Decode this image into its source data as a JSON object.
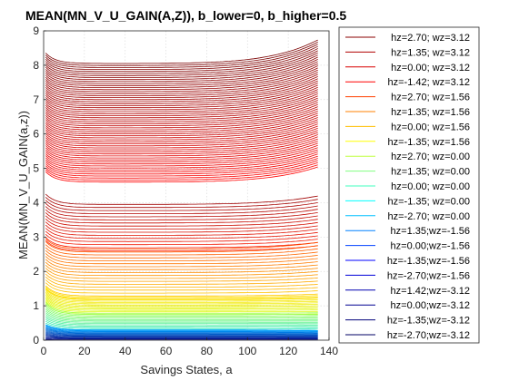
{
  "chart_data": {
    "type": "line",
    "title": "MEAN(MN_V_U_GAIN(A,Z)), b_lower=0, b_higher=0.5",
    "xlabel": "Savings States, a",
    "ylabel": "MEAN(MN_V_U_GAIN(a,z))",
    "xlim": [
      0,
      140
    ],
    "ylim": [
      0,
      9
    ],
    "xticks": [
      0,
      20,
      40,
      60,
      80,
      100,
      120,
      140
    ],
    "yticks": [
      0,
      1,
      2,
      3,
      4,
      5,
      6,
      7,
      8,
      9
    ],
    "grid": true,
    "x_max_data": 135,
    "legend_position": "outside-right",
    "legend": [
      {
        "label": "hz=2.70; wz=3.12",
        "color": "#8b0000"
      },
      {
        "label": "hz=1.35; wz=3.12",
        "color": "#b00000"
      },
      {
        "label": "hz=0.00; wz=3.12",
        "color": "#d80000"
      },
      {
        "label": "hz=-1.42; wz=3.12",
        "color": "#ff0000"
      },
      {
        "label": "hz=2.70; wz=1.56",
        "color": "#ff4000"
      },
      {
        "label": "hz=1.35; wz=1.56",
        "color": "#ff8000"
      },
      {
        "label": "hz=0.00; wz=1.56",
        "color": "#ffbf00"
      },
      {
        "label": "hz=-1.35; wz=1.56",
        "color": "#ffff00"
      },
      {
        "label": "hz=2.70; wz=0.00",
        "color": "#c0ff40"
      },
      {
        "label": "hz=1.35; wz=0.00",
        "color": "#80ff80"
      },
      {
        "label": "hz=0.00; wz=0.00",
        "color": "#40ffbf"
      },
      {
        "label": "hz=-1.35; wz=0.00",
        "color": "#00ffff"
      },
      {
        "label": "hz=-2.70; wz=0.00",
        "color": "#00bfff"
      },
      {
        "label": "hz=1.35;wz=-1.56",
        "color": "#0080ff"
      },
      {
        "label": "hz=0.00;wz=-1.56",
        "color": "#0040ff"
      },
      {
        "label": "hz=-1.35;wz=-1.56",
        "color": "#0000ff"
      },
      {
        "label": "hz=-2.70;wz=-1.56",
        "color": "#0000d8"
      },
      {
        "label": "hz=1.42;wz=-3.12",
        "color": "#0000b0"
      },
      {
        "label": "hz=0.00;wz=-3.12",
        "color": "#000090"
      },
      {
        "label": "hz=-1.35;wz=-3.12",
        "color": "#00007a"
      },
      {
        "label": "hz=-2.70;wz=-3.12",
        "color": "#000066"
      }
    ],
    "series_groups": [
      {
        "name": "upper red band",
        "color_from": "#ff0000",
        "color_to": "#7a0000",
        "count": 60,
        "y_start_from": 4.9,
        "y_start_to": 8.35,
        "y_flat_from": 4.6,
        "y_flat_to": 8.05,
        "y_end_from": 5.05,
        "y_end_to": 8.75
      },
      {
        "name": "lower red band",
        "color_from": "#ff1a00",
        "color_to": "#a00000",
        "count": 16,
        "y_start_from": 2.9,
        "y_start_to": 4.25,
        "y_flat_from": 2.6,
        "y_flat_to": 3.95,
        "y_end_from": 2.75,
        "y_end_to": 4.2
      },
      {
        "name": "orange band",
        "color_from": "#ffd000",
        "color_to": "#ff5000",
        "count": 18,
        "y_start_from": 1.5,
        "y_start_to": 2.95,
        "y_flat_from": 1.2,
        "y_flat_to": 2.65,
        "y_end_from": 1.25,
        "y_end_to": 2.85
      },
      {
        "name": "yellow band",
        "color_from": "#d8ff20",
        "color_to": "#ffe000",
        "count": 14,
        "y_start_from": 1.05,
        "y_start_to": 1.55,
        "y_flat_from": 0.75,
        "y_flat_to": 1.25,
        "y_end_from": 0.75,
        "y_end_to": 1.3
      },
      {
        "name": "green cyan band",
        "color_from": "#30e8c8",
        "color_to": "#a0ff50",
        "count": 14,
        "y_start_from": 0.45,
        "y_start_to": 1.1,
        "y_flat_from": 0.3,
        "y_flat_to": 0.78,
        "y_end_from": 0.28,
        "y_end_to": 0.8
      },
      {
        "name": "blue band",
        "color_from": "#000080",
        "color_to": "#00a0ff",
        "count": 16,
        "y_start_from": 0.02,
        "y_start_to": 0.45,
        "y_flat_from": 0.01,
        "y_flat_to": 0.3,
        "y_end_from": 0.01,
        "y_end_to": 0.28
      }
    ]
  }
}
